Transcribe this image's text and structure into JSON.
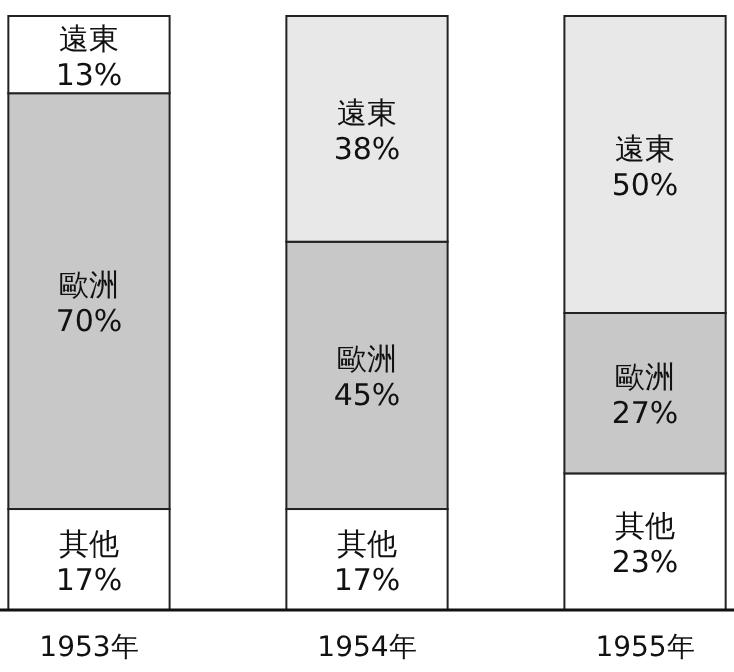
{
  "chart_data": {
    "type": "bar",
    "stacked": true,
    "categories": [
      "1953年",
      "1954年",
      "1955年"
    ],
    "ylim": [
      0,
      100
    ],
    "series": [
      {
        "name": "其他",
        "color": "#ffffff",
        "values": [
          17,
          17,
          23
        ],
        "value_labels": [
          "17%",
          "17%",
          "23%"
        ]
      },
      {
        "name": "歐洲",
        "color": "#c8c8c8",
        "values": [
          70,
          45,
          27
        ],
        "value_labels": [
          "70%",
          "45%",
          "27%"
        ]
      },
      {
        "name": "遠東",
        "colors": [
          "#ffffff",
          "#e8e8e8",
          "#e8e8e8"
        ],
        "values": [
          13,
          38,
          50
        ],
        "value_labels": [
          "13%",
          "38%",
          "50%"
        ]
      }
    ]
  }
}
